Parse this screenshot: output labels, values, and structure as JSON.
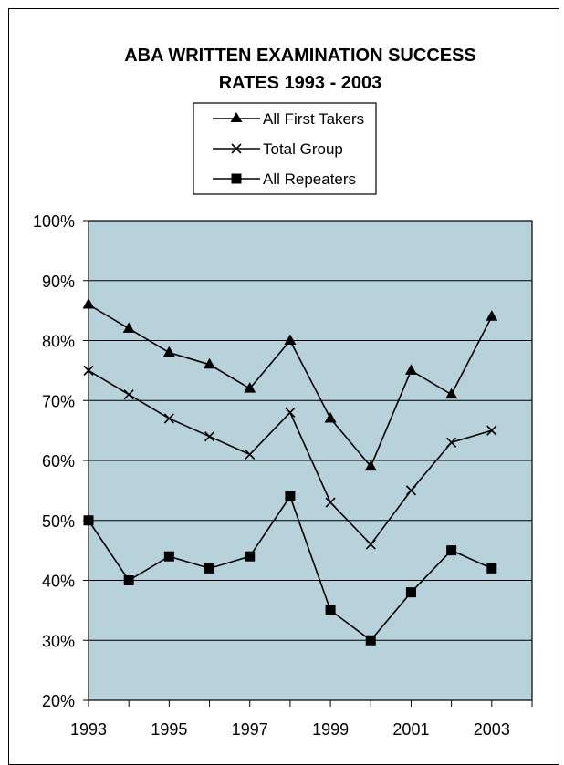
{
  "chart_data": {
    "type": "line",
    "title_lines": [
      "ABA WRITTEN EXAMINATION SUCCESS",
      "RATES 1993 - 2003"
    ],
    "x": [
      1993,
      1994,
      1995,
      1996,
      1997,
      1998,
      1999,
      2000,
      2001,
      2002,
      2003
    ],
    "x_tick_labels": [
      "1993",
      "1995",
      "1997",
      "1999",
      "2001",
      "2003"
    ],
    "xlim": [
      1993,
      2004
    ],
    "ylim": [
      20,
      100
    ],
    "y_tick_labels": [
      "20%",
      "30%",
      "40%",
      "50%",
      "60%",
      "70%",
      "80%",
      "90%",
      "100%"
    ],
    "grid": "horizontal",
    "legend_position": "top",
    "plot_background": "#b7d2da",
    "series": [
      {
        "name": "All First Takers",
        "marker": "triangle",
        "values": [
          86,
          82,
          78,
          76,
          72,
          80,
          67,
          59,
          75,
          71,
          84
        ]
      },
      {
        "name": "Total Group",
        "marker": "x",
        "values": [
          75,
          71,
          67,
          64,
          61,
          68,
          53,
          46,
          55,
          63,
          65
        ]
      },
      {
        "name": "All Repeaters",
        "marker": "square",
        "values": [
          50,
          40,
          44,
          42,
          44,
          54,
          35,
          30,
          38,
          45,
          42
        ]
      }
    ]
  }
}
